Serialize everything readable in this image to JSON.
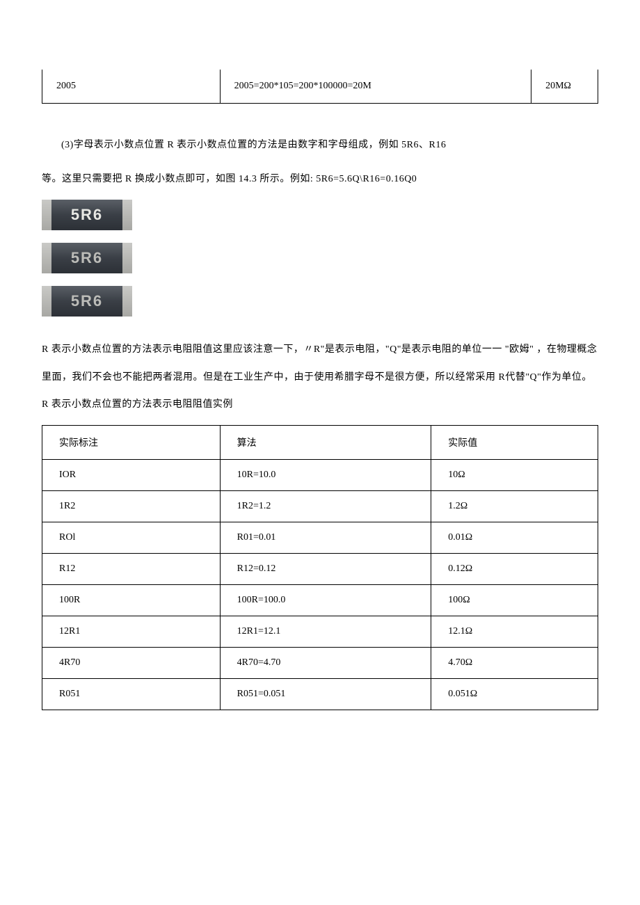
{
  "top_row": {
    "label": "2005",
    "calc": "2005=200*105=200*100000=20M",
    "value": "20MΩ"
  },
  "para1_a": "(3)字母表示小数点位置 R 表示小数点位置的方法是由数字和字母组成，例如 5R6、R16",
  "para1_b": "等。这里只需要把 R 换成小数点即可，如图 14.3 所示。例如: 5R6=5.6Q\\R16=0.16Q0",
  "resistor_label": "5R6",
  "para2": "R 表示小数点位置的方法表示电阻阻值这里应该注意一下，〃R\"是表示电阻，\"Q\"是表示电阻的单位一一 \"欧姆\" ，在物理概念里面，我们不会也不能把两者混用。但是在工业生产中，由于使用希腊字母不是很方便，所以经常采用 R代替\"Q\"作为单位。R 表示小数点位置的方法表示电阻阻值实例",
  "table": {
    "headers": {
      "a": "实际标注",
      "b": "算法",
      "c": "实际值"
    },
    "rows": [
      {
        "a": "IOR",
        "b": "10R=10.0",
        "c": "10Ω"
      },
      {
        "a": "1R2",
        "b": "1R2=1.2",
        "c": "1.2Ω"
      },
      {
        "a": "ROl",
        "b": "R01=0.01",
        "c": "0.01Ω"
      },
      {
        "a": "R12",
        "b": "R12=0.12",
        "c": "0.12Ω"
      },
      {
        "a": "100R",
        "b": "100R=100.0",
        "c": "100Ω"
      },
      {
        "a": "12R1",
        "b": "12R1=12.1",
        "c": "12.1Ω"
      },
      {
        "a": "4R70",
        "b": "4R70=4.70",
        "c": "4.70Ω"
      },
      {
        "a": "R051",
        "b": "R051=0.051",
        "c": "0.051Ω"
      }
    ]
  }
}
